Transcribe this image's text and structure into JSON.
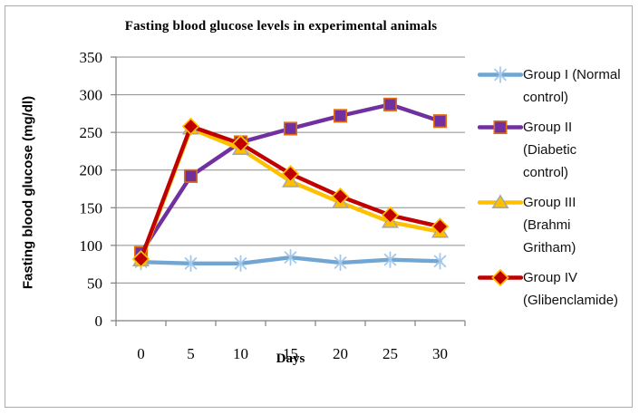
{
  "chart_data": {
    "type": "line",
    "title": "Fasting blood glucose levels in experimental animals",
    "xlabel": "Days",
    "ylabel": "Fasting blood glucose (mg/dl)",
    "x": [
      0,
      5,
      10,
      15,
      20,
      25,
      30
    ],
    "ylim": [
      0,
      350
    ],
    "y_ticks": [
      0,
      50,
      100,
      150,
      200,
      250,
      300,
      350
    ],
    "grid": true,
    "legend_position": "right",
    "series": [
      {
        "name": "Group I (Normal control)",
        "marker": "asterisk",
        "color": "#71a6d2",
        "marker_fill": "none",
        "marker_stroke": "#a5c8e9",
        "values": [
          78,
          76,
          76,
          84,
          77,
          81,
          79
        ]
      },
      {
        "name": "Group II (Diabetic control)",
        "marker": "square",
        "color": "#7030a0",
        "marker_fill": "#7030a0",
        "marker_stroke": "#e36c09",
        "values": [
          90,
          192,
          237,
          255,
          272,
          287,
          265
        ]
      },
      {
        "name": "Group III (Brahmi Gritham)",
        "marker": "triangle",
        "color": "#ffc000",
        "marker_fill": "#ffc000",
        "marker_stroke": "#a6a6a6",
        "values": [
          80,
          255,
          228,
          185,
          157,
          131,
          118
        ]
      },
      {
        "name": "Group IV (Glibenclamide)",
        "marker": "diamond",
        "color": "#c00000",
        "marker_fill": "#c00000",
        "marker_stroke": "#ffc000",
        "values": [
          82,
          258,
          235,
          195,
          165,
          140,
          125
        ]
      }
    ]
  }
}
